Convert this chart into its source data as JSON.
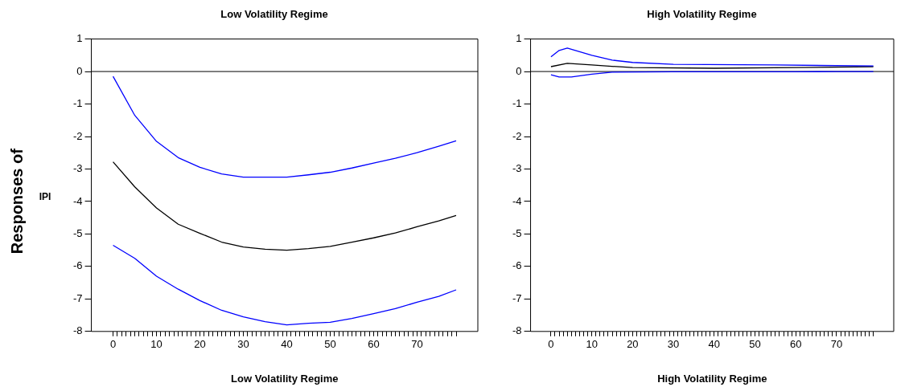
{
  "chart_data": [
    {
      "type": "line",
      "title": "Low Volatility Regime",
      "xlabel": "Low Volatility Regime",
      "ylabel": "IPI",
      "annotations": [
        "Responses of"
      ],
      "marker": "none",
      "legend": false,
      "grid": false,
      "xlim": [
        -5,
        84
      ],
      "ylim": [
        -8,
        1
      ],
      "yticks": [
        -8,
        -7,
        -6,
        -5,
        -4,
        -3,
        -2,
        -1,
        0,
        1
      ],
      "xticks": [
        0,
        {
          "value": 1,
          "label": null
        },
        {
          "value": 2,
          "label": null
        },
        {
          "value": 3,
          "label": null
        },
        {
          "value": 4,
          "label": null
        },
        {
          "value": 5,
          "label": null
        },
        {
          "value": 6,
          "label": null
        },
        {
          "value": 7,
          "label": null
        },
        {
          "value": 8,
          "label": null
        },
        {
          "value": 9,
          "label": null
        },
        10,
        {
          "value": 11,
          "label": null
        },
        {
          "value": 12,
          "label": null
        },
        {
          "value": 13,
          "label": null
        },
        {
          "value": 14,
          "label": null
        },
        {
          "value": 15,
          "label": null
        },
        {
          "value": 16,
          "label": null
        },
        {
          "value": 17,
          "label": null
        },
        {
          "value": 18,
          "label": null
        },
        {
          "value": 19,
          "label": null
        },
        20,
        {
          "value": 21,
          "label": null
        },
        {
          "value": 22,
          "label": null
        },
        {
          "value": 23,
          "label": null
        },
        {
          "value": 24,
          "label": null
        },
        {
          "value": 25,
          "label": null
        },
        {
          "value": 26,
          "label": null
        },
        {
          "value": 27,
          "label": null
        },
        {
          "value": 28,
          "label": null
        },
        {
          "value": 29,
          "label": null
        },
        30,
        {
          "value": 31,
          "label": null
        },
        {
          "value": 32,
          "label": null
        },
        {
          "value": 33,
          "label": null
        },
        {
          "value": 34,
          "label": null
        },
        {
          "value": 35,
          "label": null
        },
        {
          "value": 36,
          "label": null
        },
        {
          "value": 37,
          "label": null
        },
        {
          "value": 38,
          "label": null
        },
        {
          "value": 39,
          "label": null
        },
        40,
        {
          "value": 41,
          "label": null
        },
        {
          "value": 42,
          "label": null
        },
        {
          "value": 43,
          "label": null
        },
        {
          "value": 44,
          "label": null
        },
        {
          "value": 45,
          "label": null
        },
        {
          "value": 46,
          "label": null
        },
        {
          "value": 47,
          "label": null
        },
        {
          "value": 48,
          "label": null
        },
        {
          "value": 49,
          "label": null
        },
        50,
        {
          "value": 51,
          "label": null
        },
        {
          "value": 52,
          "label": null
        },
        {
          "value": 53,
          "label": null
        },
        {
          "value": 54,
          "label": null
        },
        {
          "value": 55,
          "label": null
        },
        {
          "value": 56,
          "label": null
        },
        {
          "value": 57,
          "label": null
        },
        {
          "value": 58,
          "label": null
        },
        {
          "value": 59,
          "label": null
        },
        60,
        {
          "value": 61,
          "label": null
        },
        {
          "value": 62,
          "label": null
        },
        {
          "value": 63,
          "label": null
        },
        {
          "value": 64,
          "label": null
        },
        {
          "value": 65,
          "label": null
        },
        {
          "value": 66,
          "label": null
        },
        {
          "value": 67,
          "label": null
        },
        {
          "value": 68,
          "label": null
        },
        {
          "value": 69,
          "label": null
        },
        70,
        {
          "value": 71,
          "label": null
        },
        {
          "value": 72,
          "label": null
        },
        {
          "value": 73,
          "label": null
        },
        {
          "value": 74,
          "label": null
        },
        {
          "value": 75,
          "label": null
        },
        {
          "value": 76,
          "label": null
        },
        {
          "value": 77,
          "label": null
        },
        {
          "value": 78,
          "label": null
        },
        {
          "value": 79,
          "label": null
        }
      ],
      "ref_lines": [
        {
          "axis": "y",
          "value": 0,
          "color": "#000000"
        }
      ],
      "x": [
        0,
        5,
        10,
        15,
        20,
        25,
        30,
        35,
        40,
        45,
        50,
        55,
        60,
        65,
        70,
        75,
        79
      ],
      "series": [
        {
          "color": "#0000ff",
          "values": [
            -0.15,
            -1.35,
            -2.15,
            -2.65,
            -2.95,
            -3.15,
            -3.25,
            -3.25,
            -3.25,
            -3.18,
            -3.1,
            -2.97,
            -2.82,
            -2.67,
            -2.5,
            -2.3,
            -2.13
          ]
        },
        {
          "color": "#000000",
          "values": [
            -2.78,
            -3.55,
            -4.2,
            -4.7,
            -4.98,
            -5.25,
            -5.4,
            -5.47,
            -5.5,
            -5.45,
            -5.38,
            -5.25,
            -5.12,
            -4.97,
            -4.78,
            -4.6,
            -4.43
          ]
        },
        {
          "color": "#0000ff",
          "values": [
            -5.35,
            -5.75,
            -6.3,
            -6.7,
            -7.05,
            -7.35,
            -7.55,
            -7.7,
            -7.8,
            -7.75,
            -7.72,
            -7.6,
            -7.45,
            -7.3,
            -7.1,
            -6.92,
            -6.72
          ]
        }
      ]
    },
    {
      "type": "line",
      "title": "High Volatility Regime",
      "xlabel": "High Volatility Regime",
      "marker": "none",
      "legend": false,
      "grid": false,
      "xlim": [
        -5,
        84
      ],
      "ylim": [
        -8,
        1
      ],
      "yticks": [
        -8,
        -7,
        -6,
        -5,
        -4,
        -3,
        -2,
        -1,
        0,
        1
      ],
      "xticks": [
        0,
        {
          "value": 1,
          "label": null
        },
        {
          "value": 2,
          "label": null
        },
        {
          "value": 3,
          "label": null
        },
        {
          "value": 4,
          "label": null
        },
        {
          "value": 5,
          "label": null
        },
        {
          "value": 6,
          "label": null
        },
        {
          "value": 7,
          "label": null
        },
        {
          "value": 8,
          "label": null
        },
        {
          "value": 9,
          "label": null
        },
        10,
        {
          "value": 11,
          "label": null
        },
        {
          "value": 12,
          "label": null
        },
        {
          "value": 13,
          "label": null
        },
        {
          "value": 14,
          "label": null
        },
        {
          "value": 15,
          "label": null
        },
        {
          "value": 16,
          "label": null
        },
        {
          "value": 17,
          "label": null
        },
        {
          "value": 18,
          "label": null
        },
        {
          "value": 19,
          "label": null
        },
        20,
        {
          "value": 21,
          "label": null
        },
        {
          "value": 22,
          "label": null
        },
        {
          "value": 23,
          "label": null
        },
        {
          "value": 24,
          "label": null
        },
        {
          "value": 25,
          "label": null
        },
        {
          "value": 26,
          "label": null
        },
        {
          "value": 27,
          "label": null
        },
        {
          "value": 28,
          "label": null
        },
        {
          "value": 29,
          "label": null
        },
        30,
        {
          "value": 31,
          "label": null
        },
        {
          "value": 32,
          "label": null
        },
        {
          "value": 33,
          "label": null
        },
        {
          "value": 34,
          "label": null
        },
        {
          "value": 35,
          "label": null
        },
        {
          "value": 36,
          "label": null
        },
        {
          "value": 37,
          "label": null
        },
        {
          "value": 38,
          "label": null
        },
        {
          "value": 39,
          "label": null
        },
        40,
        {
          "value": 41,
          "label": null
        },
        {
          "value": 42,
          "label": null
        },
        {
          "value": 43,
          "label": null
        },
        {
          "value": 44,
          "label": null
        },
        {
          "value": 45,
          "label": null
        },
        {
          "value": 46,
          "label": null
        },
        {
          "value": 47,
          "label": null
        },
        {
          "value": 48,
          "label": null
        },
        {
          "value": 49,
          "label": null
        },
        50,
        {
          "value": 51,
          "label": null
        },
        {
          "value": 52,
          "label": null
        },
        {
          "value": 53,
          "label": null
        },
        {
          "value": 54,
          "label": null
        },
        {
          "value": 55,
          "label": null
        },
        {
          "value": 56,
          "label": null
        },
        {
          "value": 57,
          "label": null
        },
        {
          "value": 58,
          "label": null
        },
        {
          "value": 59,
          "label": null
        },
        60,
        {
          "value": 61,
          "label": null
        },
        {
          "value": 62,
          "label": null
        },
        {
          "value": 63,
          "label": null
        },
        {
          "value": 64,
          "label": null
        },
        {
          "value": 65,
          "label": null
        },
        {
          "value": 66,
          "label": null
        },
        {
          "value": 67,
          "label": null
        },
        {
          "value": 68,
          "label": null
        },
        {
          "value": 69,
          "label": null
        },
        70,
        {
          "value": 71,
          "label": null
        },
        {
          "value": 72,
          "label": null
        },
        {
          "value": 73,
          "label": null
        },
        {
          "value": 74,
          "label": null
        },
        {
          "value": 75,
          "label": null
        },
        {
          "value": 76,
          "label": null
        },
        {
          "value": 77,
          "label": null
        },
        {
          "value": 78,
          "label": null
        },
        {
          "value": 79,
          "label": null
        }
      ],
      "ref_lines": [
        {
          "axis": "y",
          "value": 0,
          "color": "#000000"
        }
      ],
      "series": [
        {
          "color": "#0000ff",
          "x": [
            0,
            2,
            4,
            6,
            10,
            15,
            20,
            30,
            55,
            79
          ],
          "values": [
            0.45,
            0.65,
            0.72,
            0.65,
            0.5,
            0.35,
            0.28,
            0.22,
            0.2,
            0.17
          ]
        },
        {
          "color": "#000000",
          "x": [
            0,
            4,
            10,
            20,
            40,
            60,
            79
          ],
          "values": [
            0.15,
            0.25,
            0.2,
            0.12,
            0.1,
            0.12,
            0.15
          ]
        },
        {
          "color": "#0000ff",
          "x": [
            0,
            2,
            5,
            10,
            15,
            30,
            60,
            70,
            79
          ],
          "values": [
            -0.1,
            -0.17,
            -0.17,
            -0.08,
            -0.02,
            -0.01,
            -0.01,
            0,
            0
          ]
        }
      ]
    }
  ]
}
